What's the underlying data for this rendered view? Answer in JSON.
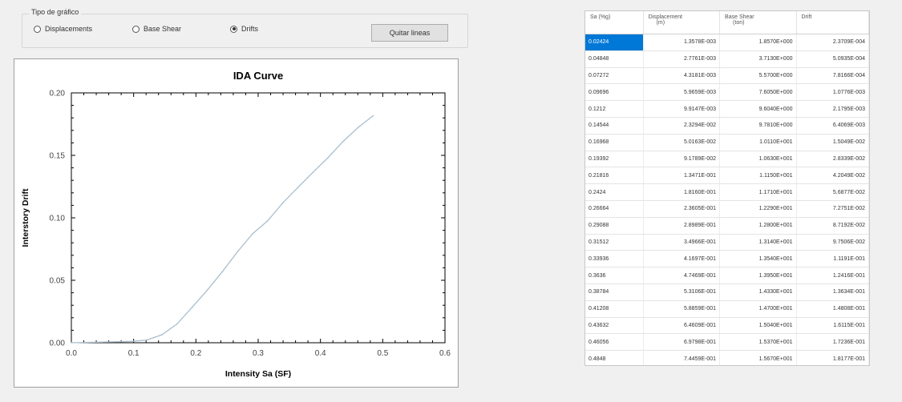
{
  "radio_group": {
    "legend": "Tipo de gráfico",
    "options": [
      {
        "label": "Displacements",
        "selected": false
      },
      {
        "label": "Base Shear",
        "selected": false
      },
      {
        "label": "Drifts",
        "selected": true
      }
    ]
  },
  "toolbar": {
    "clear_label": "Quitar lineas"
  },
  "chart_data": {
    "type": "line",
    "title": "IDA Curve",
    "xlabel": "Intensity Sa (SF)",
    "ylabel": "Interstory Drift",
    "xlim": [
      0,
      0.6
    ],
    "ylim": [
      0,
      0.2
    ],
    "xticks": [
      "0.0",
      "0.1",
      "0.2",
      "0.3",
      "0.4",
      "0.5",
      "0.6"
    ],
    "yticks": [
      "0.00",
      "0.05",
      "0.10",
      "0.15",
      "0.20"
    ],
    "grid": false,
    "color": "#a9bfcf",
    "x": [
      0.0,
      0.02424,
      0.04848,
      0.07272,
      0.09696,
      0.1212,
      0.14544,
      0.16968,
      0.19392,
      0.21816,
      0.2424,
      0.26664,
      0.29088,
      0.31512,
      0.33936,
      0.3636,
      0.38784,
      0.41208,
      0.43632,
      0.46056,
      0.4848
    ],
    "y": [
      0.0,
      0.0002371,
      0.0005094,
      0.0007817,
      0.0010776,
      0.0021795,
      0.0064069,
      0.015049,
      0.028339,
      0.042049,
      0.056877,
      0.072751,
      0.087192,
      0.097506,
      0.11191,
      0.12416,
      0.13634,
      0.14808,
      0.16115,
      0.17236,
      0.18177
    ]
  },
  "table": {
    "headers": [
      {
        "top": "Sa (%g)",
        "sub": ""
      },
      {
        "top": "Displacement",
        "sub": "(m)"
      },
      {
        "top": "Base Shear",
        "sub": "(ton)"
      },
      {
        "top": "Drift",
        "sub": ""
      }
    ],
    "rows": [
      [
        "0.02424",
        "1.3578E-003",
        "1.8570E+000",
        "2.3709E-004"
      ],
      [
        "0.04848",
        "2.7761E-003",
        "3.7130E+000",
        "5.0935E-004"
      ],
      [
        "0.07272",
        "4.3181E-003",
        "5.5700E+000",
        "7.8166E-004"
      ],
      [
        "0.09696",
        "5.9659E-003",
        "7.6050E+000",
        "1.0776E-003"
      ],
      [
        "0.1212",
        "9.9147E-003",
        "9.6040E+000",
        "2.1795E-003"
      ],
      [
        "0.14544",
        "2.3294E-002",
        "9.7810E+000",
        "6.4069E-003"
      ],
      [
        "0.16968",
        "5.0163E-002",
        "1.0110E+001",
        "1.5049E-002"
      ],
      [
        "0.19392",
        "9.1789E-002",
        "1.0630E+001",
        "2.8339E-002"
      ],
      [
        "0.21816",
        "1.3471E-001",
        "1.1150E+001",
        "4.2049E-002"
      ],
      [
        "0.2424",
        "1.8160E-001",
        "1.1710E+001",
        "5.6877E-002"
      ],
      [
        "0.26664",
        "2.3605E-001",
        "1.2290E+001",
        "7.2751E-002"
      ],
      [
        "0.29088",
        "2.8989E-001",
        "1.2800E+001",
        "8.7192E-002"
      ],
      [
        "0.31512",
        "3.4966E-001",
        "1.3140E+001",
        "9.7506E-002"
      ],
      [
        "0.33936",
        "4.1697E-001",
        "1.3540E+001",
        "1.1191E-001"
      ],
      [
        "0.3636",
        "4.7469E-001",
        "1.3950E+001",
        "1.2416E-001"
      ],
      [
        "0.38784",
        "5.3106E-001",
        "1.4330E+001",
        "1.3634E-001"
      ],
      [
        "0.41208",
        "5.8859E-001",
        "1.4700E+001",
        "1.4808E-001"
      ],
      [
        "0.43632",
        "6.4609E-001",
        "1.5040E+001",
        "1.6115E-001"
      ],
      [
        "0.46056",
        "6.9798E-001",
        "1.5370E+001",
        "1.7236E-001"
      ],
      [
        "0.4848",
        "7.4459E-001",
        "1.5670E+001",
        "1.8177E-001"
      ]
    ],
    "selected_row": 0
  }
}
